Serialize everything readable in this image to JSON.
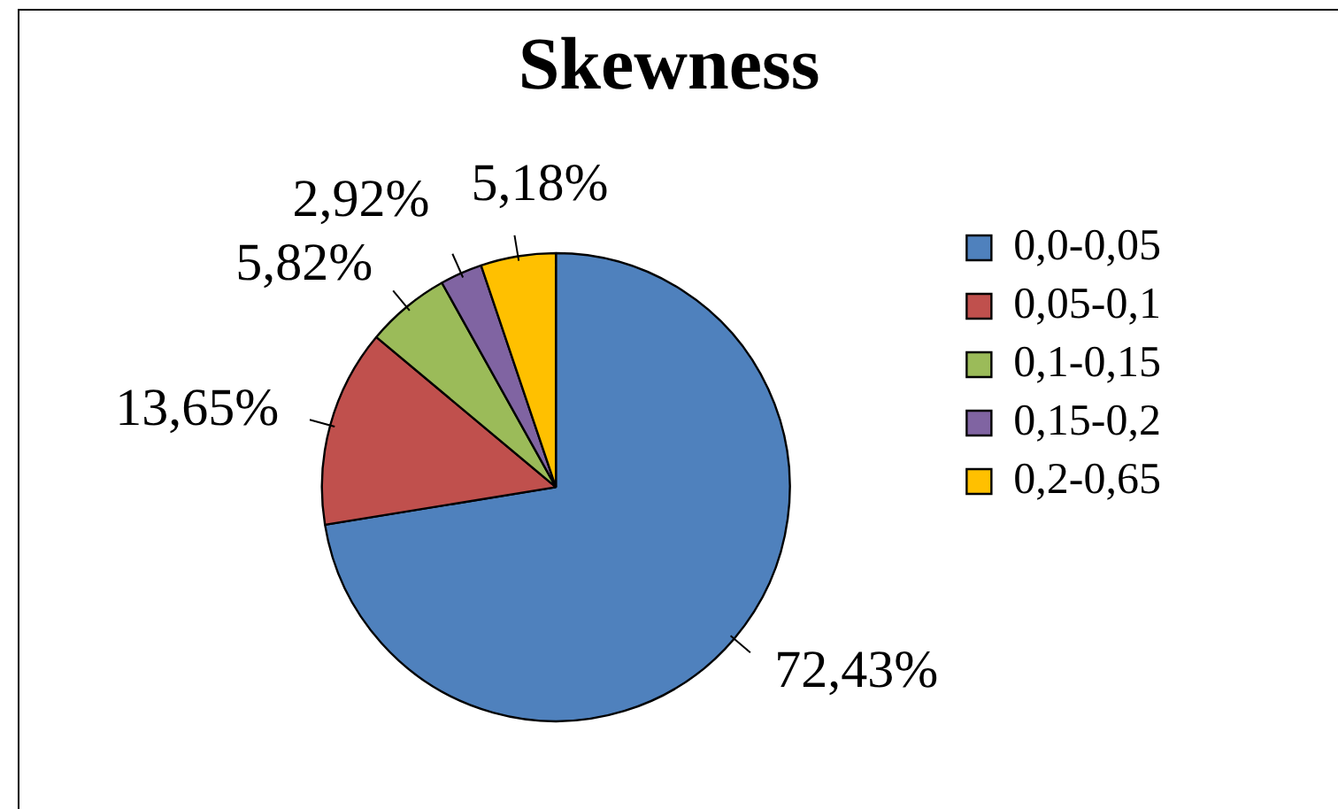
{
  "chart_data": {
    "type": "pie",
    "title": "Skewness",
    "categories": [
      "0,0-0,05",
      "0,05-0,1",
      "0,1-0,15",
      "0,15-0,2",
      "0,2-0,65"
    ],
    "values": [
      72.43,
      13.65,
      5.82,
      2.92,
      5.18
    ],
    "value_labels": [
      "72,43%",
      "13,65%",
      "5,82%",
      "2,92%",
      "5,18%"
    ],
    "colors": [
      "#4f81bd",
      "#c0504d",
      "#9bbb59",
      "#8064a2",
      "#ffc000"
    ],
    "legend": "right"
  }
}
